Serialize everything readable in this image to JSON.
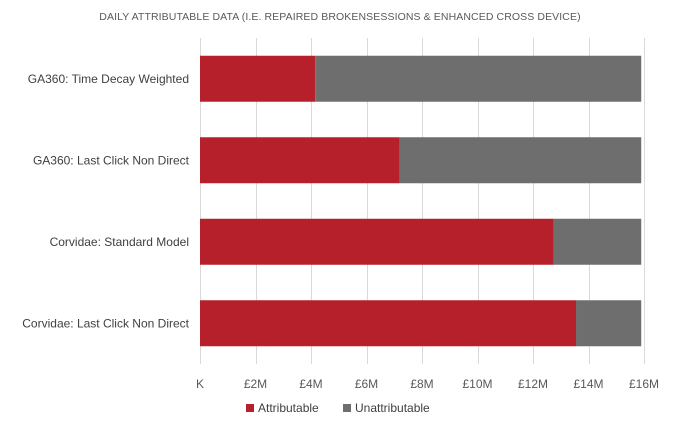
{
  "chart_data": {
    "type": "bar",
    "orientation": "horizontal",
    "stacked": true,
    "title": "DAILY ATTRIBUTABLE DATA  (I.E. REPAIRED BROKENSESSIONS & ENHANCED CROSS DEVICE)",
    "categories": [
      "GA360: Time Decay Weighted",
      "GA360: Last Click Non Direct",
      "Corvidae: Standard Model",
      "Corvidae: Last Click Non Direct"
    ],
    "series": [
      {
        "name": "Attributable",
        "color": "#b5202a",
        "values": [
          4.15,
          7.2,
          12.75,
          13.55
        ]
      },
      {
        "name": "Unattributable",
        "color": "#6e6e6e",
        "values": [
          11.75,
          8.7,
          3.15,
          2.35
        ]
      }
    ],
    "xlim": [
      0,
      16
    ],
    "x_ticks": [
      0,
      2,
      4,
      6,
      8,
      10,
      12,
      14,
      16
    ],
    "x_tick_labels": [
      "K",
      "£2M",
      "£4M",
      "£6M",
      "£8M",
      "£10M",
      "£12M",
      "£14M",
      "£16M"
    ],
    "xlabel": "",
    "ylabel": "",
    "grid": "vertical",
    "legend_position": "bottom"
  }
}
